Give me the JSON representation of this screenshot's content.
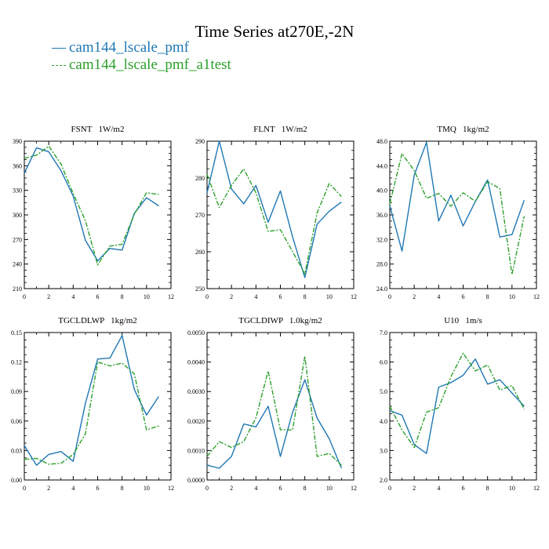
{
  "figure": {
    "title": "Time Series at270E,-2N",
    "legend": [
      {
        "label": "cam144_lscale_pmf",
        "color": "#1f77b4",
        "dash": "solid"
      },
      {
        "label": "cam144_lscale_pmf_a1test",
        "color": "#2ca02c",
        "dash": "dashdot"
      }
    ]
  },
  "chart_data": [
    {
      "type": "line",
      "title": "FSNT   1W/m2",
      "xlim": [
        0,
        12
      ],
      "xticks": [
        "0",
        "2",
        "4",
        "6",
        "8",
        "10",
        "12"
      ],
      "ylim": [
        210,
        390
      ],
      "yticks": [
        "210",
        "240",
        "270",
        "300",
        "330",
        "360",
        "390"
      ],
      "x": [
        0,
        1,
        2,
        3,
        4,
        5,
        6,
        7,
        8,
        9,
        10,
        11
      ],
      "series": [
        {
          "name": "cam144_lscale_pmf",
          "values": [
            351,
            382,
            377,
            354,
            323,
            269,
            244,
            259,
            257,
            302,
            321,
            311
          ]
        },
        {
          "name": "cam144_lscale_pmf_a1test",
          "values": [
            369,
            373,
            384,
            362,
            326,
            293,
            239,
            262,
            264,
            301,
            327,
            325
          ]
        }
      ]
    },
    {
      "type": "line",
      "title": "FLNT   1W/m2",
      "xlim": [
        0,
        12
      ],
      "xticks": [
        "0",
        "2",
        "4",
        "6",
        "8",
        "10",
        "12"
      ],
      "ylim": [
        250,
        290
      ],
      "yticks": [
        "250",
        "260",
        "270",
        "280",
        "290"
      ],
      "x": [
        0,
        1,
        2,
        3,
        4,
        5,
        6,
        7,
        8,
        9,
        10,
        11
      ],
      "series": [
        {
          "name": "cam144_lscale_pmf",
          "values": [
            276,
            290,
            277,
            273,
            278,
            268,
            276.5,
            264,
            253,
            267.5,
            271,
            273.5
          ]
        },
        {
          "name": "cam144_lscale_pmf_a1test",
          "values": [
            281,
            272,
            278,
            282.5,
            276,
            265.5,
            266,
            260,
            254,
            270.5,
            278.5,
            275
          ]
        }
      ]
    },
    {
      "type": "line",
      "title": "TMQ   1kg/m2",
      "xlim": [
        0,
        12
      ],
      "xticks": [
        "0",
        "2",
        "4",
        "6",
        "8",
        "10",
        "12"
      ],
      "ylim": [
        24,
        48
      ],
      "yticks": [
        "24.0",
        "28.0",
        "32.0",
        "36.0",
        "40.0",
        "44.0",
        "48.0"
      ],
      "x": [
        0,
        1,
        2,
        3,
        4,
        5,
        6,
        7,
        8,
        9,
        10,
        11
      ],
      "series": [
        {
          "name": "cam144_lscale_pmf",
          "values": [
            37.5,
            30.1,
            42.5,
            47.8,
            35,
            39.2,
            34.2,
            38.2,
            41.7,
            32.4,
            32.8,
            38.4
          ]
        },
        {
          "name": "cam144_lscale_pmf_a1test",
          "values": [
            37.8,
            46,
            43.2,
            38.7,
            39.5,
            37.4,
            39.6,
            38.2,
            41.4,
            40.3,
            26.3,
            35.8
          ]
        }
      ]
    },
    {
      "type": "line",
      "title": "TGCLDLWP   1kg/m2",
      "xlim": [
        0,
        12
      ],
      "xticks": [
        "0",
        "2",
        "4",
        "6",
        "8",
        "10",
        "12"
      ],
      "ylim": [
        0,
        0.15
      ],
      "yticks": [
        "0.00",
        "0.03",
        "0.06",
        "0.09",
        "0.12",
        "0.15"
      ],
      "x": [
        0,
        1,
        2,
        3,
        4,
        5,
        6,
        7,
        8,
        9,
        10,
        11
      ],
      "series": [
        {
          "name": "cam144_lscale_pmf",
          "values": [
            0.035,
            0.015,
            0.026,
            0.029,
            0.019,
            0.078,
            0.123,
            0.124,
            0.147,
            0.092,
            0.066,
            0.085
          ]
        },
        {
          "name": "cam144_lscale_pmf_a1test",
          "values": [
            0.021,
            0.022,
            0.016,
            0.017,
            0.026,
            0.047,
            0.12,
            0.116,
            0.119,
            0.108,
            0.051,
            0.055
          ]
        }
      ]
    },
    {
      "type": "line",
      "title": "TGCLDIWP   1.0kg/m2",
      "xlim": [
        0,
        12
      ],
      "xticks": [
        "0",
        "2",
        "4",
        "6",
        "8",
        "10",
        "12"
      ],
      "ylim": [
        0,
        0.005
      ],
      "yticks": [
        "0.0000",
        "0.0010",
        "0.0020",
        "0.0030",
        "0.0040",
        "0.0050"
      ],
      "x": [
        0,
        1,
        2,
        3,
        4,
        5,
        6,
        7,
        8,
        9,
        10,
        11
      ],
      "series": [
        {
          "name": "cam144_lscale_pmf",
          "values": [
            0.0005,
            0.0004,
            0.0008,
            0.0019,
            0.0018,
            0.0025,
            0.0008,
            0.0023,
            0.0034,
            0.0021,
            0.0014,
            0.0004
          ]
        },
        {
          "name": "cam144_lscale_pmf_a1test",
          "values": [
            0.0008,
            0.0013,
            0.0011,
            0.0013,
            0.0021,
            0.0037,
            0.0017,
            0.0017,
            0.0042,
            0.0008,
            0.0009,
            0.0005
          ]
        }
      ]
    },
    {
      "type": "line",
      "title": "U10   1m/s",
      "xlim": [
        0,
        12
      ],
      "xticks": [
        "0",
        "2",
        "4",
        "6",
        "8",
        "10",
        "12"
      ],
      "ylim": [
        2,
        7
      ],
      "yticks": [
        "2.0",
        "3.0",
        "4.0",
        "5.0",
        "6.0",
        "7.0"
      ],
      "x": [
        0,
        1,
        2,
        3,
        4,
        5,
        6,
        7,
        8,
        9,
        10,
        11
      ],
      "series": [
        {
          "name": "cam144_lscale_pmf",
          "values": [
            4.35,
            4.2,
            3.2,
            2.9,
            5.15,
            5.3,
            5.55,
            6.1,
            5.25,
            5.4,
            4.95,
            4.5
          ]
        },
        {
          "name": "cam144_lscale_pmf_a1test",
          "values": [
            4.5,
            3.7,
            3.1,
            4.3,
            4.45,
            5.5,
            6.3,
            5.7,
            5.9,
            5.05,
            5.2,
            4.4
          ]
        }
      ]
    }
  ]
}
